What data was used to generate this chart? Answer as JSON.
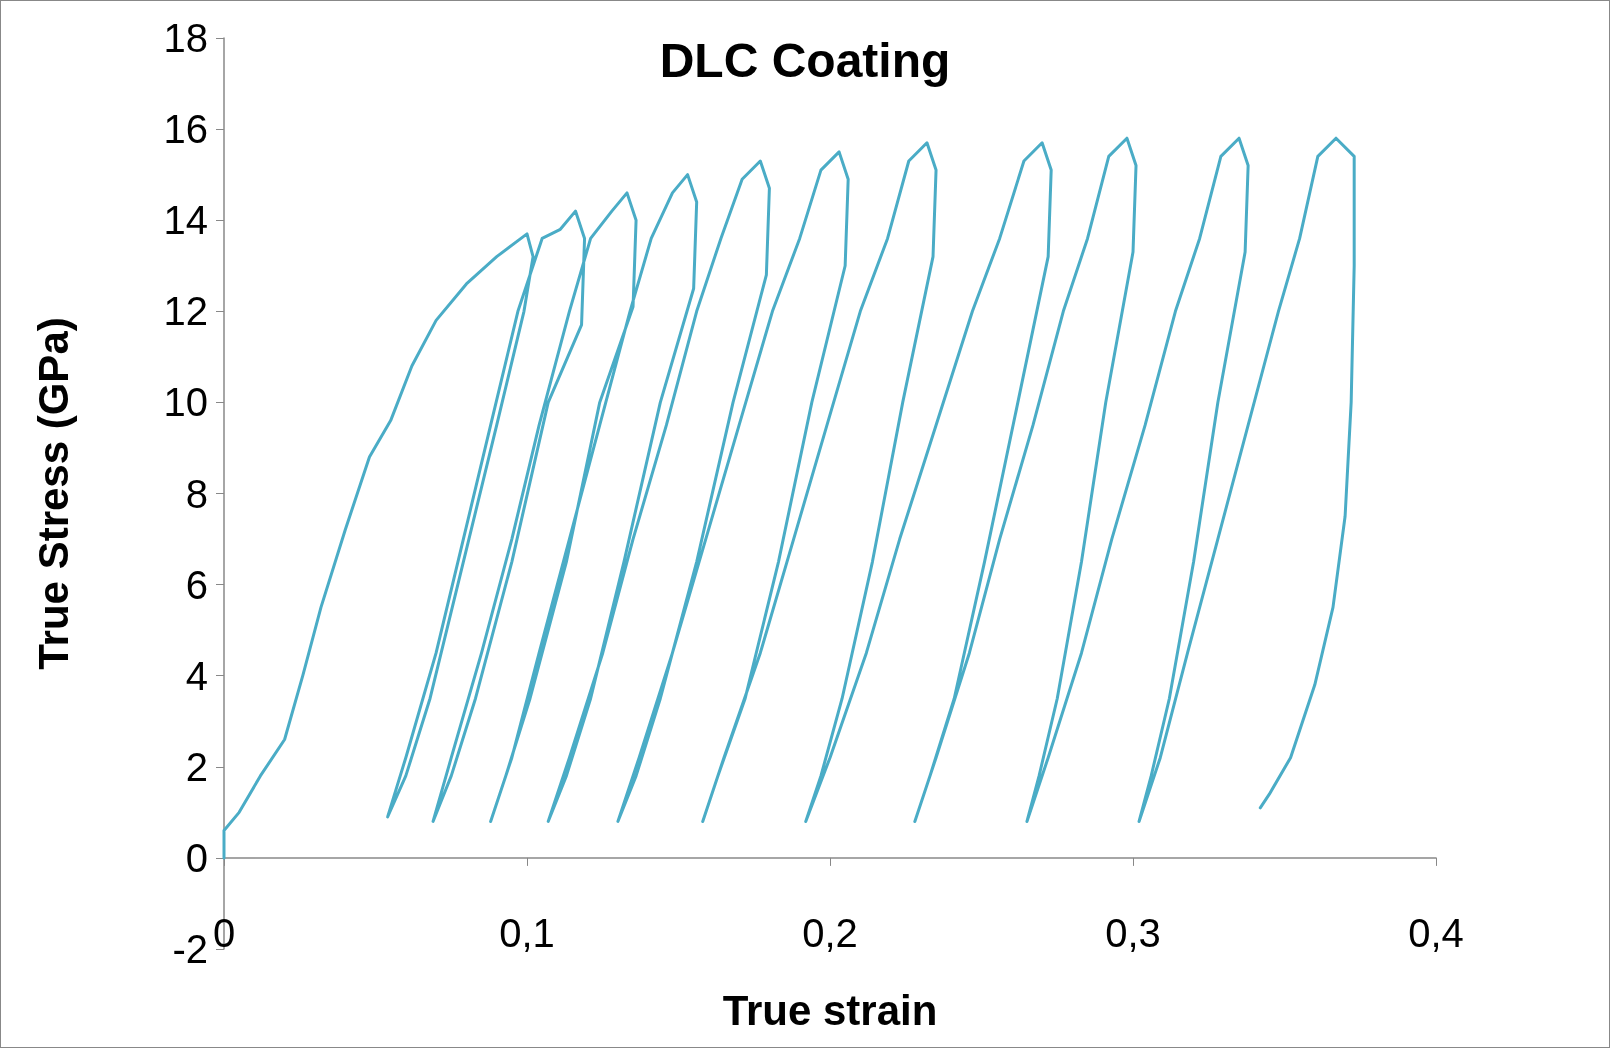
{
  "chart_data": {
    "type": "line",
    "title": "DLC Coating",
    "xlabel": "True strain",
    "ylabel": "True Stress (GPa)",
    "xlim": [
      0,
      0.4
    ],
    "xticks": [
      0,
      {
        "value": 0.1,
        "label": "0,1"
      },
      {
        "value": 0.2,
        "label": "0,2"
      },
      {
        "value": 0.3,
        "label": "0,3"
      },
      {
        "value": 0.4,
        "label": "0,4"
      }
    ],
    "ylim": [
      -2,
      18
    ],
    "yticks": [
      -2,
      0,
      2,
      4,
      6,
      8,
      10,
      12,
      14,
      16,
      18
    ],
    "grid": false,
    "marker": "none",
    "line_style": "solid",
    "series": [
      {
        "color": "#4aacc6",
        "x": [
          0,
          0,
          0.005,
          0.012,
          0.02,
          0.026,
          0.032,
          0.04,
          0.048,
          0.055,
          0.062,
          0.07,
          0.08,
          0.09,
          0.1,
          0.102,
          0.099,
          0.09,
          0.079,
          0.068,
          0.06,
          0.054,
          0.06,
          0.07,
          0.079,
          0.088,
          0.097,
          0.105,
          0.111,
          0.116,
          0.119,
          0.118,
          0.107,
          0.095,
          0.083,
          0.075,
          0.069,
          0.075,
          0.085,
          0.095,
          0.104,
          0.114,
          0.121,
          0.128,
          0.133,
          0.136,
          0.135,
          0.124,
          0.113,
          0.101,
          0.093,
          0.088,
          0.095,
          0.104,
          0.114,
          0.124,
          0.134,
          0.141,
          0.148,
          0.153,
          0.156,
          0.155,
          0.144,
          0.132,
          0.121,
          0.113,
          0.107,
          0.114,
          0.125,
          0.135,
          0.146,
          0.156,
          0.164,
          0.171,
          0.177,
          0.18,
          0.179,
          0.168,
          0.156,
          0.144,
          0.136,
          0.13,
          0.137,
          0.148,
          0.159,
          0.17,
          0.181,
          0.19,
          0.197,
          0.203,
          0.206,
          0.205,
          0.194,
          0.183,
          0.172,
          0.163,
          0.158,
          0.165,
          0.177,
          0.188,
          0.199,
          0.21,
          0.219,
          0.226,
          0.232,
          0.235,
          0.234,
          0.224,
          0.214,
          0.204,
          0.197,
          0.192,
          0.2,
          0.212,
          0.223,
          0.235,
          0.247,
          0.256,
          0.264,
          0.27,
          0.273,
          0.272,
          0.262,
          0.251,
          0.241,
          0.233,
          0.228,
          0.235,
          0.246,
          0.256,
          0.267,
          0.277,
          0.285,
          0.292,
          0.298,
          0.301,
          0.3,
          0.291,
          0.283,
          0.275,
          0.269,
          0.265,
          0.272,
          0.283,
          0.293,
          0.304,
          0.314,
          0.322,
          0.329,
          0.335,
          0.338,
          0.337,
          0.328,
          0.32,
          0.312,
          0.306,
          0.302,
          0.309,
          0.318,
          0.328,
          0.338,
          0.348,
          0.355,
          0.361,
          0.367,
          0.373,
          0.373,
          0.372,
          0.37,
          0.366,
          0.36,
          0.352,
          0.345,
          0.342
        ],
        "values": [
          0,
          0.6,
          1,
          1.8,
          2.6,
          4,
          5.5,
          7.2,
          8.8,
          9.6,
          10.8,
          11.8,
          12.6,
          13.2,
          13.7,
          13.2,
          12,
          9.5,
          6.5,
          3.5,
          1.8,
          0.9,
          2.2,
          4.5,
          7,
          9.5,
          12,
          13.6,
          13.8,
          14.2,
          13.6,
          11.7,
          10,
          6.5,
          3.5,
          1.8,
          0.8,
          2.2,
          4.5,
          7,
          9.5,
          12,
          13.6,
          14.2,
          14.6,
          14,
          12.1,
          10,
          6.5,
          3.5,
          1.8,
          0.8,
          2.2,
          4.5,
          7,
          9.5,
          12,
          13.6,
          14.6,
          15,
          14.4,
          12.5,
          10,
          6.5,
          3.5,
          1.8,
          0.8,
          2.2,
          4.5,
          7,
          9.5,
          12,
          13.6,
          14.9,
          15.3,
          14.7,
          12.8,
          10,
          6.5,
          3.5,
          1.8,
          0.8,
          2.2,
          4.5,
          7,
          9.5,
          12,
          13.6,
          15.1,
          15.5,
          14.9,
          13,
          10,
          6.5,
          3.5,
          1.8,
          0.8,
          2.2,
          4.5,
          7,
          9.5,
          12,
          13.6,
          15.3,
          15.7,
          15.1,
          13.2,
          10,
          6.5,
          3.5,
          1.8,
          0.8,
          2.2,
          4.5,
          7,
          9.5,
          12,
          13.6,
          15.3,
          15.7,
          15.1,
          13.2,
          10,
          6.5,
          3.5,
          1.8,
          0.8,
          2.2,
          4.5,
          7,
          9.5,
          12,
          13.6,
          15.4,
          15.8,
          15.2,
          13.3,
          10,
          6.5,
          3.5,
          1.8,
          0.8,
          2.2,
          4.5,
          7,
          9.5,
          12,
          13.6,
          15.4,
          15.8,
          15.2,
          13.3,
          10,
          6.5,
          3.5,
          1.8,
          0.8,
          2.2,
          4.5,
          7,
          9.5,
          12,
          13.6,
          15.4,
          15.8,
          15.4,
          13,
          10,
          7.5,
          5.5,
          3.8,
          2.2,
          1.4,
          1.1
        ]
      }
    ]
  }
}
